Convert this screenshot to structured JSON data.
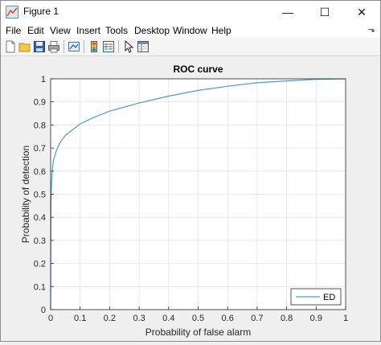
{
  "window": {
    "title": "Figure 1",
    "minimize": "—",
    "maximize": "☐",
    "close": "✕"
  },
  "menu": {
    "items": [
      "File",
      "Edit",
      "View",
      "Insert",
      "Tools",
      "Desktop",
      "Window",
      "Help"
    ],
    "overflow_arrow": "⬎"
  },
  "toolbar": {
    "icons": [
      "new-figure-icon",
      "open-file-icon",
      "save-icon",
      "print-icon",
      "link-plot-icon",
      "insert-colorbar-icon",
      "insert-legend-icon",
      "edit-plot-arrow-icon",
      "property-inspector-icon"
    ]
  },
  "colors": {
    "line": "#4a9cd0",
    "axes_bg": "#ffffff",
    "grid": "#e3e3e3"
  },
  "chart_data": {
    "type": "line",
    "title": "ROC curve",
    "xlabel": "Probability of false alarm",
    "ylabel": "Probability of detection",
    "xlim": [
      0,
      1
    ],
    "ylim": [
      0,
      1
    ],
    "xticks": [
      "0",
      "0.1",
      "0.2",
      "0.3",
      "0.4",
      "0.5",
      "0.6",
      "0.7",
      "0.8",
      "0.9",
      "1"
    ],
    "yticks": [
      "0",
      "0.1",
      "0.2",
      "0.3",
      "0.4",
      "0.5",
      "0.6",
      "0.7",
      "0.8",
      "0.9",
      "1"
    ],
    "grid": true,
    "legend_position": "bottom-right",
    "series": [
      {
        "name": "ED",
        "x": [
          0,
          0.001,
          0.003,
          0.006,
          0.01,
          0.02,
          0.03,
          0.05,
          0.07,
          0.1,
          0.15,
          0.2,
          0.3,
          0.4,
          0.5,
          0.6,
          0.7,
          0.8,
          0.9,
          1.0
        ],
        "y": [
          0,
          0.45,
          0.55,
          0.61,
          0.65,
          0.69,
          0.72,
          0.755,
          0.775,
          0.805,
          0.835,
          0.86,
          0.895,
          0.925,
          0.95,
          0.968,
          0.983,
          0.991,
          0.998,
          1.0
        ]
      }
    ]
  }
}
